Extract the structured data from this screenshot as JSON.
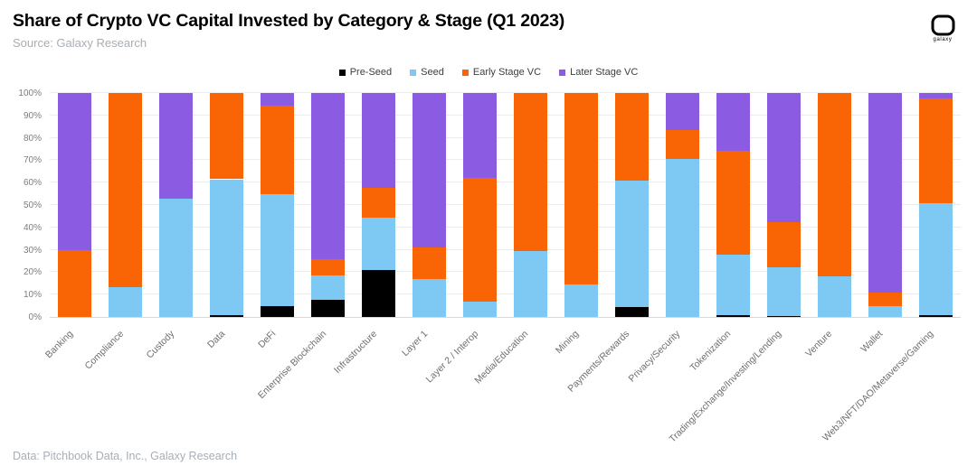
{
  "header": {
    "title": "Share of Crypto VC Capital Invested by Category & Stage (Q1 2023)",
    "subtitle": "Source: Galaxy Research",
    "logo_text": "galaxy"
  },
  "footer": {
    "credit": "Data: Pitchbook Data, Inc., Galaxy Research"
  },
  "chart_data": {
    "type": "bar",
    "stacked": true,
    "unit": "percent",
    "title": "Share of Crypto VC Capital Invested by Category & Stage (Q1 2023)",
    "ylim": [
      0,
      100
    ],
    "ytick_step": 10,
    "ytick_suffix": "%",
    "grid": true,
    "legend_position": "top-center",
    "categories": [
      "Banking",
      "Compliance",
      "Custody",
      "Data",
      "DeFi",
      "Enterprise Blockchain",
      "Infrastructure",
      "Layer 1",
      "Layer 2 / Interop",
      "Media/Education",
      "Mining",
      "Payments/Rewards",
      "Privacy/Security",
      "Tokenization",
      "Trading/Exchange/Investing/Lending",
      "Venture",
      "Wallet",
      "Web3/NFT/DAO/Metaverse/Gaming"
    ],
    "series": [
      {
        "name": "Pre-Seed",
        "color": "#000000",
        "values": [
          0,
          0,
          0,
          1,
          5,
          7.5,
          21,
          0,
          0,
          0,
          0,
          4.5,
          0,
          1,
          0.5,
          0,
          0,
          1
        ]
      },
      {
        "name": "Seed",
        "color": "#7ec8f4",
        "values": [
          0,
          13.5,
          53,
          60.5,
          50,
          11,
          23.5,
          17,
          7,
          29.5,
          14.5,
          56.5,
          70.5,
          27,
          21.5,
          18,
          5,
          50
        ]
      },
      {
        "name": "Early Stage VC",
        "color": "#f96505",
        "values": [
          30,
          86.5,
          0,
          38.5,
          39.5,
          7.5,
          13,
          14,
          55,
          70.5,
          85.5,
          39,
          13,
          46,
          20.5,
          82,
          6,
          46.5
        ]
      },
      {
        "name": "Later Stage VC",
        "color": "#8b5be2",
        "values": [
          70,
          0,
          47,
          0,
          5.5,
          74,
          42.5,
          69,
          38,
          0,
          0,
          0,
          16.5,
          26,
          57.5,
          0,
          89,
          2.5
        ]
      }
    ]
  }
}
